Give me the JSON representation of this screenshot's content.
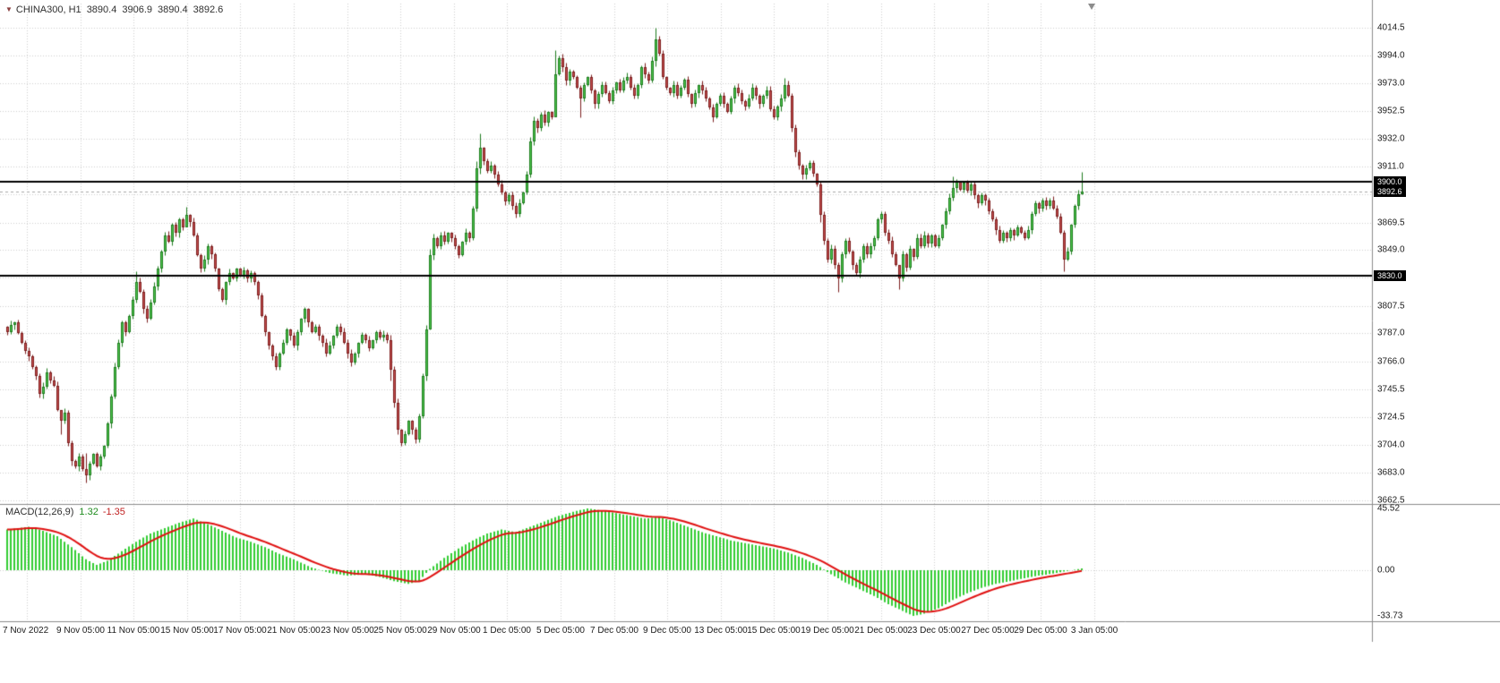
{
  "header": {
    "symbol_arrow": "▼",
    "title": "CHINA300, H1",
    "ohlc": {
      "open": "3890.4",
      "high": "3906.9",
      "low": "3890.4",
      "close": "3892.6"
    }
  },
  "colors": {
    "bull_fill": "#4fc94f",
    "bull_border": "#1e7c1e",
    "bear_fill": "#c95050",
    "bear_border": "#7c1e1e",
    "grid": "#cfcfcf",
    "hline": "#000000",
    "bid_line": "#a8a8a8",
    "macd_hist": "#32cd32",
    "macd_signal": "#e01010",
    "divider": "#8c8c8c",
    "tag_bg": "#000000",
    "tag_fg": "#ffffff"
  },
  "price_axis": {
    "labels": [
      {
        "v": 4014.5,
        "t": "4014.5"
      },
      {
        "v": 3994.0,
        "t": "3994.0"
      },
      {
        "v": 3973.0,
        "t": "3973.0"
      },
      {
        "v": 3952.5,
        "t": "3952.5"
      },
      {
        "v": 3932.0,
        "t": "3932.0"
      },
      {
        "v": 3911.0,
        "t": "3911.0"
      },
      {
        "v": 3869.5,
        "t": "3869.5"
      },
      {
        "v": 3849.0,
        "t": "3849.0"
      },
      {
        "v": 3807.5,
        "t": "3807.5"
      },
      {
        "v": 3787.0,
        "t": "3787.0"
      },
      {
        "v": 3766.0,
        "t": "3766.0"
      },
      {
        "v": 3745.5,
        "t": "3745.5"
      },
      {
        "v": 3724.5,
        "t": "3724.5"
      },
      {
        "v": 3704.0,
        "t": "3704.0"
      },
      {
        "v": 3683.0,
        "t": "3683.0"
      },
      {
        "v": 3662.5,
        "t": "3662.5"
      }
    ],
    "hidden_grid": [
      3890.5,
      3828.5
    ],
    "tags": [
      {
        "v": 3900.0,
        "t": "3900.0",
        "name": "resistance-line-price-tag"
      },
      {
        "v": 3892.6,
        "t": "3892.6",
        "name": "bid-price-tag"
      },
      {
        "v": 3830.0,
        "t": "3830.0",
        "name": "support-line-price-tag"
      }
    ]
  },
  "macd_panel": {
    "label": "MACD(12,26,9)",
    "macd_value": "1.32",
    "signal_value": "-1.35",
    "axis_labels": [
      {
        "v": 45.52,
        "t": "45.52"
      },
      {
        "v": 0,
        "t": "0.00"
      },
      {
        "v": -33.73,
        "t": "-33.73"
      }
    ]
  },
  "chart_data": {
    "type": "candlestick",
    "title": "CHINA300, H1",
    "symbol": "CHINA300",
    "timeframe": "H1",
    "current_bar": {
      "open": 3890.4,
      "high": 3906.9,
      "low": 3890.4,
      "close": 3892.6
    },
    "bid": 3892.6,
    "support_resistance_lines": [
      3900.0,
      3830.0
    ],
    "y_range": [
      3662.5,
      4014.5
    ],
    "time_labels": [
      "7 Nov 2022",
      "9 Nov 05:00",
      "11 Nov 05:00",
      "15 Nov 05:00",
      "17 Nov 05:00",
      "21 Nov 05:00",
      "23 Nov 05:00",
      "25 Nov 05:00",
      "29 Nov 05:00",
      "1 Dec 05:00",
      "5 Dec 05:00",
      "7 Dec 05:00",
      "9 Dec 05:00",
      "13 Dec 05:00",
      "15 Dec 05:00",
      "19 Dec 05:00",
      "21 Dec 05:00",
      "23 Dec 05:00",
      "27 Dec 05:00",
      "29 Dec 05:00",
      "3 Jan 05:00"
    ],
    "closes": [
      3788,
      3793,
      3795,
      3787,
      3780,
      3774,
      3770,
      3762,
      3755,
      3742,
      3747,
      3758,
      3752,
      3748,
      3730,
      3722,
      3728,
      3705,
      3692,
      3688,
      3695,
      3686,
      3681,
      3690,
      3697,
      3688,
      3695,
      3703,
      3720,
      3740,
      3762,
      3780,
      3795,
      3788,
      3800,
      3812,
      3825,
      3818,
      3805,
      3798,
      3810,
      3822,
      3835,
      3848,
      3860,
      3855,
      3868,
      3862,
      3872,
      3866,
      3875,
      3870,
      3860,
      3845,
      3835,
      3842,
      3852,
      3846,
      3835,
      3820,
      3812,
      3825,
      3832,
      3828,
      3835,
      3830,
      3834,
      3828,
      3832,
      3825,
      3815,
      3800,
      3788,
      3778,
      3770,
      3762,
      3772,
      3780,
      3790,
      3785,
      3778,
      3788,
      3798,
      3805,
      3795,
      3788,
      3792,
      3785,
      3780,
      3772,
      3778,
      3785,
      3792,
      3788,
      3780,
      3772,
      3765,
      3772,
      3780,
      3786,
      3782,
      3776,
      3782,
      3788,
      3784,
      3786,
      3782,
      3760,
      3735,
      3715,
      3705,
      3712,
      3722,
      3715,
      3708,
      3725,
      3755,
      3790,
      3845,
      3858,
      3852,
      3860,
      3855,
      3862,
      3858,
      3852,
      3845,
      3855,
      3862,
      3858,
      3880,
      3910,
      3925,
      3915,
      3908,
      3912,
      3905,
      3898,
      3892,
      3885,
      3890,
      3882,
      3876,
      3884,
      3892,
      3905,
      3930,
      3945,
      3940,
      3950,
      3944,
      3952,
      3948,
      3980,
      3992,
      3985,
      3975,
      3982,
      3978,
      3970,
      3962,
      3972,
      3978,
      3968,
      3958,
      3965,
      3972,
      3966,
      3960,
      3968,
      3974,
      3968,
      3975,
      3978,
      3970,
      3964,
      3972,
      3985,
      3980,
      3975,
      3990,
      4006,
      3995,
      3978,
      3970,
      3966,
      3972,
      3964,
      3970,
      3976,
      3965,
      3958,
      3966,
      3972,
      3968,
      3962,
      3955,
      3948,
      3958,
      3964,
      3958,
      3952,
      3962,
      3970,
      3966,
      3960,
      3956,
      3962,
      3970,
      3964,
      3958,
      3964,
      3968,
      3954,
      3948,
      3956,
      3962,
      3972,
      3964,
      3940,
      3922,
      3912,
      3905,
      3910,
      3914,
      3906,
      3898,
      3875,
      3856,
      3842,
      3850,
      3838,
      3828,
      3846,
      3856,
      3848,
      3838,
      3832,
      3842,
      3852,
      3846,
      3852,
      3858,
      3872,
      3876,
      3862,
      3856,
      3846,
      3838,
      3828,
      3846,
      3836,
      3850,
      3844,
      3858,
      3852,
      3860,
      3854,
      3860,
      3852,
      3858,
      3868,
      3878,
      3888,
      3895,
      3900,
      3894,
      3899,
      3893,
      3898,
      3890,
      3884,
      3890,
      3886,
      3878,
      3872,
      3864,
      3856,
      3862,
      3858,
      3864,
      3860,
      3866,
      3862,
      3858,
      3864,
      3876,
      3884,
      3880,
      3886,
      3882,
      3886,
      3880,
      3874,
      3862,
      3842,
      3848,
      3868,
      3882,
      3890.4,
      3892.6
    ],
    "wick_overrides": {
      "15": [
        3728,
        3712
      ],
      "22": [
        3698,
        3676
      ],
      "36": [
        3833,
        3810
      ],
      "50": [
        3881,
        3868
      ],
      "107": [
        3786,
        3752
      ],
      "118": [
        3850,
        3790
      ],
      "131": [
        3915,
        3878
      ],
      "132": [
        3936,
        3906
      ],
      "153": [
        3998,
        3950
      ],
      "160": [
        3972,
        3948
      ],
      "181": [
        4014.5,
        3986
      ],
      "217": [
        3977,
        3960
      ],
      "227": [
        3900,
        3870
      ],
      "232": [
        3840,
        3818
      ],
      "249": [
        3838,
        3820
      ],
      "264": [
        3904,
        3886
      ],
      "295": [
        3864,
        3833
      ],
      "300": [
        3906.9,
        3890.4
      ]
    },
    "macd": {
      "params": [
        12,
        26,
        9
      ],
      "current": {
        "macd": 1.32,
        "signal": -1.35
      },
      "range": [
        -33.73,
        45.52
      ],
      "anchors": [
        [
          0,
          30
        ],
        [
          6,
          32
        ],
        [
          10,
          29
        ],
        [
          14,
          25
        ],
        [
          18,
          17
        ],
        [
          22,
          8
        ],
        [
          25,
          4
        ],
        [
          28,
          7
        ],
        [
          32,
          14
        ],
        [
          36,
          21
        ],
        [
          40,
          27
        ],
        [
          44,
          31
        ],
        [
          48,
          35
        ],
        [
          52,
          38
        ],
        [
          56,
          34
        ],
        [
          60,
          29
        ],
        [
          64,
          24
        ],
        [
          68,
          21
        ],
        [
          72,
          17
        ],
        [
          76,
          12
        ],
        [
          80,
          8
        ],
        [
          85,
          2
        ],
        [
          90,
          -2
        ],
        [
          95,
          -4
        ],
        [
          100,
          -3
        ],
        [
          104,
          -5
        ],
        [
          108,
          -8
        ],
        [
          112,
          -10
        ],
        [
          115,
          -8
        ],
        [
          118,
          1
        ],
        [
          122,
          9
        ],
        [
          126,
          16
        ],
        [
          130,
          22
        ],
        [
          134,
          27
        ],
        [
          138,
          30
        ],
        [
          142,
          28
        ],
        [
          146,
          32
        ],
        [
          150,
          36
        ],
        [
          154,
          40
        ],
        [
          158,
          43
        ],
        [
          162,
          45.5
        ],
        [
          166,
          44
        ],
        [
          170,
          42
        ],
        [
          174,
          40
        ],
        [
          178,
          38
        ],
        [
          182,
          39
        ],
        [
          186,
          36
        ],
        [
          190,
          32
        ],
        [
          194,
          28
        ],
        [
          198,
          25
        ],
        [
          202,
          22
        ],
        [
          206,
          20
        ],
        [
          210,
          18
        ],
        [
          214,
          16
        ],
        [
          218,
          13
        ],
        [
          222,
          9
        ],
        [
          226,
          4
        ],
        [
          230,
          -3
        ],
        [
          234,
          -9
        ],
        [
          238,
          -14
        ],
        [
          242,
          -19
        ],
        [
          246,
          -25
        ],
        [
          250,
          -30
        ],
        [
          253,
          -33.7
        ],
        [
          256,
          -32
        ],
        [
          260,
          -28
        ],
        [
          264,
          -22
        ],
        [
          268,
          -17
        ],
        [
          272,
          -13
        ],
        [
          276,
          -10
        ],
        [
          280,
          -8
        ],
        [
          284,
          -6
        ],
        [
          288,
          -4
        ],
        [
          292,
          -2.5
        ],
        [
          296,
          -0.5
        ],
        [
          300,
          1.32
        ]
      ]
    }
  }
}
